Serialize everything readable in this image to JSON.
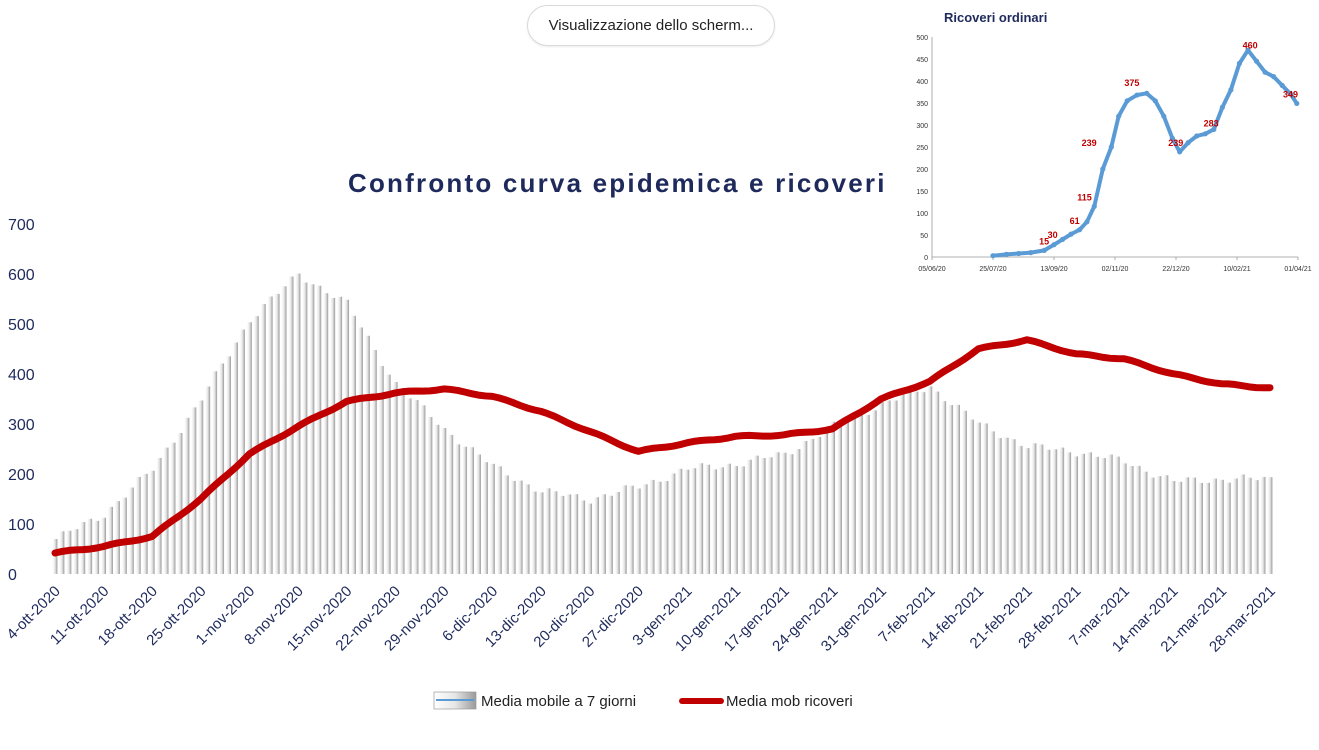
{
  "screen_share": {
    "label": "Visualizzazione dello scherm..."
  },
  "chart_data": [
    {
      "type": "bar+line",
      "title": "Confronto curva epidemica e ricoveri",
      "ylim": [
        0,
        700
      ],
      "yticks": [
        0,
        100,
        200,
        300,
        400,
        500,
        600,
        700
      ],
      "x_start": "2020-10-04",
      "xtick_labels": [
        "4-ott-2020",
        "11-ott-2020",
        "18-ott-2020",
        "25-ott-2020",
        "1-nov-2020",
        "8-nov-2020",
        "15-nov-2020",
        "22-nov-2020",
        "29-nov-2020",
        "6-dic-2020",
        "13-dic-2020",
        "20-dic-2020",
        "27-dic-2020",
        "3-gen-2021",
        "10-gen-2021",
        "17-gen-2021",
        "24-gen-2021",
        "31-gen-2021",
        "7-feb-2021",
        "14-feb-2021",
        "21-feb-2021",
        "28-feb-2021",
        "7-mar-2021",
        "14-mar-2021",
        "21-mar-2021",
        "28-mar-2021"
      ],
      "series": [
        {
          "name": "Media mobile a 7 giorni",
          "kind": "bar",
          "color": "#d9d9d9",
          "weekly_values": [
            70,
            120,
            210,
            350,
            510,
            600,
            540,
            380,
            290,
            215,
            165,
            150,
            175,
            210,
            220,
            240,
            295,
            340,
            375,
            300,
            255,
            245,
            225,
            185,
            190
          ]
        },
        {
          "name": "Media mob ricoveri",
          "kind": "line",
          "color": "#c00000",
          "weekly_values": [
            42,
            55,
            75,
            150,
            240,
            295,
            345,
            362,
            370,
            355,
            325,
            285,
            245,
            262,
            275,
            278,
            290,
            350,
            385,
            450,
            468,
            440,
            430,
            400,
            380,
            372
          ]
        }
      ],
      "legend_position": "bottom"
    },
    {
      "type": "line",
      "title": "Ricoveri ordinari",
      "ylim": [
        0,
        500
      ],
      "yticks": [
        0,
        50,
        100,
        150,
        200,
        250,
        300,
        350,
        400,
        450,
        500
      ],
      "xticks": [
        "05/06/20",
        "25/07/20",
        "13/09/20",
        "02/11/20",
        "22/12/20",
        "10/02/21",
        "01/04/21"
      ],
      "x_domain": [
        "2020-06-05",
        "2021-04-01"
      ],
      "color": "#5b9bd5",
      "points": [
        [
          "2020-07-25",
          3
        ],
        [
          "2020-08-05",
          6
        ],
        [
          "2020-08-15",
          8
        ],
        [
          "2020-08-25",
          10
        ],
        [
          "2020-09-05",
          15
        ],
        [
          "2020-09-13",
          28
        ],
        [
          "2020-09-20",
          40
        ],
        [
          "2020-09-27",
          52
        ],
        [
          "2020-10-04",
          62
        ],
        [
          "2020-10-10",
          80
        ],
        [
          "2020-10-16",
          115
        ],
        [
          "2020-10-23",
          200
        ],
        [
          "2020-10-30",
          250
        ],
        [
          "2020-11-05",
          320
        ],
        [
          "2020-11-12",
          355
        ],
        [
          "2020-11-20",
          368
        ],
        [
          "2020-11-28",
          372
        ],
        [
          "2020-12-05",
          355
        ],
        [
          "2020-12-12",
          320
        ],
        [
          "2020-12-19",
          270
        ],
        [
          "2020-12-25",
          239
        ],
        [
          "2021-01-01",
          260
        ],
        [
          "2021-01-08",
          275
        ],
        [
          "2021-01-15",
          280
        ],
        [
          "2021-01-22",
          290
        ],
        [
          "2021-01-29",
          340
        ],
        [
          "2021-02-05",
          380
        ],
        [
          "2021-02-12",
          440
        ],
        [
          "2021-02-19",
          470
        ],
        [
          "2021-02-26",
          445
        ],
        [
          "2021-03-05",
          420
        ],
        [
          "2021-03-12",
          410
        ],
        [
          "2021-03-19",
          390
        ],
        [
          "2021-03-26",
          370
        ],
        [
          "2021-03-31",
          349
        ]
      ],
      "annotations": [
        {
          "text": "15",
          "x": "2020-09-09",
          "y": 15
        },
        {
          "text": "30",
          "x": "2020-09-16",
          "y": 30
        },
        {
          "text": "61",
          "x": "2020-10-04",
          "y": 61
        },
        {
          "text": "115",
          "x": "2020-10-14",
          "y": 115
        },
        {
          "text": "239",
          "x": "2020-10-18",
          "y": 239
        },
        {
          "text": "375",
          "x": "2020-11-22",
          "y": 375
        },
        {
          "text": "239",
          "x": "2020-12-28",
          "y": 239
        },
        {
          "text": "283",
          "x": "2021-01-26",
          "y": 283
        },
        {
          "text": "460",
          "x": "2021-02-27",
          "y": 460
        },
        {
          "text": "349",
          "x": "2021-04-01",
          "y": 349
        }
      ],
      "annotation_color": "#c00000"
    }
  ]
}
